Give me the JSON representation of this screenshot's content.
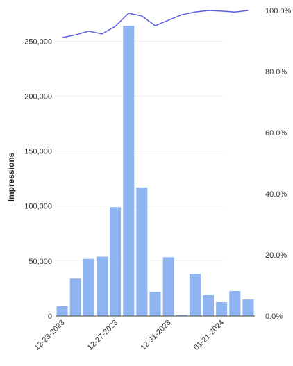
{
  "chart_data": {
    "type": "bar",
    "y_label": "Impressions",
    "categories": [
      "12-23-2023",
      null,
      null,
      null,
      "12-27-2023",
      null,
      null,
      null,
      "12-31-2023",
      null,
      null,
      null,
      "01-21-2024",
      null,
      null
    ],
    "series": [
      {
        "type": "bar",
        "color": "#8fb4f2",
        "values": [
          9000,
          34000,
          52000,
          54000,
          99000,
          264000,
          117000,
          22000,
          53500,
          1000,
          38400,
          19000,
          12600,
          22700,
          15100
        ]
      },
      {
        "type": "line",
        "axis": "y2",
        "color": "#5a5fe0",
        "values": [
          91.1,
          92,
          93.2,
          92.3,
          94.8,
          99.1,
          98.2,
          95,
          96.8,
          98.6,
          99.5,
          100,
          99.8,
          99.5,
          100
        ]
      }
    ],
    "ylim": [
      0,
      278000
    ],
    "yticks": [
      0,
      {
        "value": 50000,
        "label": "50,000"
      },
      {
        "value": 100000,
        "label": "100,000"
      },
      {
        "value": 150000,
        "label": "150,000"
      },
      {
        "value": 200000,
        "label": "200,000"
      },
      {
        "value": 250000,
        "label": "250,000"
      }
    ],
    "y2lim": [
      0,
      100
    ],
    "y2ticks": [
      {
        "value": 0,
        "label": "0.0%"
      },
      {
        "value": 20,
        "label": "20.0%"
      },
      {
        "value": 40,
        "label": "40.0%"
      },
      {
        "value": 60,
        "label": "60.0%"
      },
      {
        "value": 80,
        "label": "80.0%"
      },
      {
        "value": 100,
        "label": "100.0%"
      }
    ],
    "grid": true
  }
}
